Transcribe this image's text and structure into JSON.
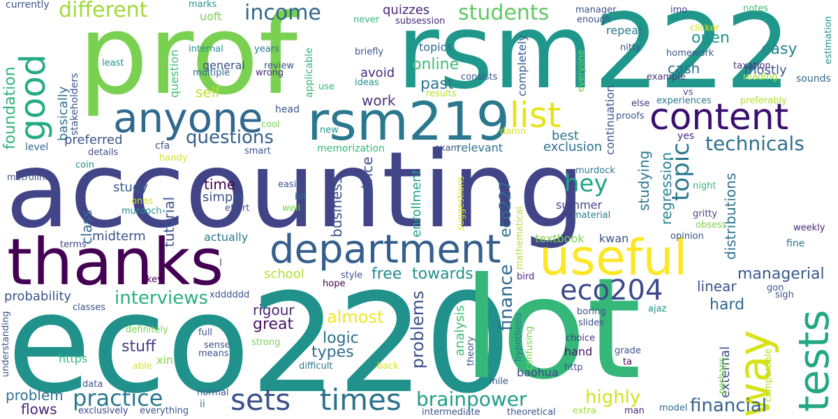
{
  "words": [
    {
      "text": "accounting",
      "color": "#414487"
    },
    {
      "text": "eco220",
      "color": "#21918c"
    },
    {
      "text": "prof",
      "color": "#7ad151"
    },
    {
      "text": "rsm222",
      "color": "#1f988b"
    },
    {
      "text": "lot",
      "color": "#35b779"
    },
    {
      "text": "thanks",
      "color": "#440154"
    },
    {
      "text": "department",
      "color": "#355f8d"
    },
    {
      "text": "anyone",
      "color": "#31688e"
    },
    {
      "text": "rsm219",
      "color": "#2a788e"
    },
    {
      "text": "useful",
      "color": "#fde725"
    },
    {
      "text": "way",
      "color": "#d8e219"
    },
    {
      "text": "content",
      "color": "#3b0f70"
    },
    {
      "text": "tests",
      "color": "#22a884"
    },
    {
      "text": "times",
      "color": "#2c728e"
    },
    {
      "text": "sets",
      "color": "#3b528b"
    },
    {
      "text": "eco204",
      "color": "#3e4989"
    },
    {
      "text": "good",
      "color": "#25ac82"
    },
    {
      "text": "list",
      "color": "#e5e419"
    },
    {
      "text": "practice",
      "color": "#2a788e"
    },
    {
      "text": "brainpower",
      "color": "#1f9e89"
    },
    {
      "text": "topic",
      "color": "#2a788e"
    },
    {
      "text": "income",
      "color": "#31688e"
    },
    {
      "text": "students",
      "color": "#5ec962"
    },
    {
      "text": "different",
      "color": "#a0da39"
    },
    {
      "text": "questions",
      "color": "#355f8d"
    },
    {
      "text": "technicals",
      "color": "#2d708e"
    },
    {
      "text": "hey",
      "color": "#21a585"
    },
    {
      "text": "highly",
      "color": "#d2e21b"
    },
    {
      "text": "financial",
      "color": "#34618d"
    },
    {
      "text": "finance",
      "color": "#30698e"
    },
    {
      "text": "interviews",
      "color": "#29af7f"
    },
    {
      "text": "almost",
      "color": "#f1e51d"
    },
    {
      "text": "problems",
      "color": "#3b528b"
    },
    {
      "text": "great",
      "color": "#471365"
    },
    {
      "text": "logic",
      "color": "#2d708e"
    },
    {
      "text": "types",
      "color": "#2f6c8e"
    },
    {
      "text": "stuff",
      "color": "#433e85"
    },
    {
      "text": "foundation",
      "color": "#2eb37c"
    },
    {
      "text": "easy",
      "color": "#26828e"
    },
    {
      "text": "open",
      "color": "#21918c"
    },
    {
      "text": "mostly",
      "color": "#39568c"
    },
    {
      "text": "online",
      "color": "#3dbc74"
    },
    {
      "text": "past",
      "color": "#2a788e"
    },
    {
      "text": "cash",
      "color": "#2c728e"
    },
    {
      "text": "managerial",
      "color": "#38598c"
    },
    {
      "text": "hard",
      "color": "#31688e"
    },
    {
      "text": "linear",
      "color": "#3b528b"
    },
    {
      "text": "free",
      "color": "#23898e"
    },
    {
      "text": "towards",
      "color": "#20928c"
    },
    {
      "text": "school",
      "color": "#b5de2b"
    },
    {
      "text": "rigour",
      "color": "#482878"
    },
    {
      "text": "problem",
      "color": "#2c728e"
    },
    {
      "text": "flows",
      "color": "#482475"
    },
    {
      "text": "external",
      "color": "#3e4989"
    },
    {
      "text": "distributions",
      "color": "#2d708e"
    },
    {
      "text": "regression",
      "color": "#26828e"
    },
    {
      "text": "studying",
      "color": "#2a788e"
    },
    {
      "text": "exclusion",
      "color": "#2c728e"
    },
    {
      "text": "best",
      "color": "#2a788e"
    },
    {
      "text": "summer",
      "color": "#414487"
    },
    {
      "text": "business",
      "color": "#3b528b"
    },
    {
      "text": "advice",
      "color": "#3b528b"
    },
    {
      "text": "enrollment",
      "color": "#1fa088"
    },
    {
      "text": "eco227",
      "color": "#2d708e"
    },
    {
      "text": "analysis",
      "color": "#3dbc74"
    },
    {
      "text": "work",
      "color": "#46337e"
    },
    {
      "text": "self",
      "color": "#bddf26"
    },
    {
      "text": "quizzes",
      "color": "#482576"
    },
    {
      "text": "topics",
      "color": "#31688e"
    },
    {
      "text": "avoid",
      "color": "#482878"
    },
    {
      "text": "basically",
      "color": "#2c728e"
    },
    {
      "text": "general",
      "color": "#3b528b"
    },
    {
      "text": "question",
      "color": "#44bf70"
    },
    {
      "text": "uoft",
      "color": "#7ad151"
    },
    {
      "text": "class",
      "color": "#31688e"
    },
    {
      "text": "tutorial",
      "color": "#3b528b"
    },
    {
      "text": "time",
      "color": "#440154"
    },
    {
      "text": "simple",
      "color": "#3b528b"
    },
    {
      "text": "study",
      "color": "#38598c"
    },
    {
      "text": "midterm",
      "color": "#3b528b"
    },
    {
      "text": "actually",
      "color": "#2a788e"
    },
    {
      "text": "preferred",
      "color": "#3b528b"
    },
    {
      "text": "level",
      "color": "#31688e"
    },
    {
      "text": "memorization",
      "color": "#35b779"
    },
    {
      "text": "relevant",
      "color": "#2c728e"
    },
    {
      "text": "probability",
      "color": "#39568c"
    },
    {
      "text": "head",
      "color": "#3b528b"
    },
    {
      "text": "repeat",
      "color": "#2a788e"
    },
    {
      "text": "completely",
      "color": "#39568c"
    },
    {
      "text": "continuation",
      "color": "#3b528b"
    },
    {
      "text": "textbook",
      "color": "#7ad151"
    },
    {
      "text": "kwan",
      "color": "#3b528b"
    },
    {
      "text": "hand",
      "color": "#471365"
    },
    {
      "text": "baohua",
      "color": "#414487"
    },
    {
      "text": "https",
      "color": "#35b779"
    },
    {
      "text": "xin",
      "color": "#84d44b"
    },
    {
      "text": "cfa",
      "color": "#39568c"
    },
    {
      "text": "stakeholders",
      "color": "#3b528b"
    },
    {
      "text": "multiple",
      "color": "#31688e"
    },
    {
      "text": "review",
      "color": "#3b528b"
    },
    {
      "text": "wrong",
      "color": "#482878"
    },
    {
      "text": "applicable",
      "color": "#35b779"
    },
    {
      "text": "consists",
      "color": "#3b528b"
    },
    {
      "text": "briefly",
      "color": "#3b528b"
    },
    {
      "text": "ideas",
      "color": "#20928c"
    },
    {
      "text": "results",
      "color": "#b5de2b"
    },
    {
      "text": "use",
      "color": "#35b779"
    },
    {
      "text": "years",
      "color": "#2a788e"
    },
    {
      "text": "internal",
      "color": "#21918c"
    },
    {
      "text": "least",
      "color": "#21918c"
    },
    {
      "text": "currently",
      "color": "#3b528b"
    },
    {
      "text": "marks",
      "color": "#21918c"
    },
    {
      "text": "never",
      "color": "#35b779"
    },
    {
      "text": "subsession",
      "color": "#482878"
    },
    {
      "text": "manager",
      "color": "#3b528b"
    },
    {
      "text": "enough",
      "color": "#3b528b"
    },
    {
      "text": "imo",
      "color": "#414487"
    },
    {
      "text": "notes",
      "color": "#3dbc74"
    },
    {
      "text": "clicker",
      "color": "#d2e21b"
    },
    {
      "text": "homework",
      "color": "#39568c"
    },
    {
      "text": "taxation",
      "color": "#482878"
    },
    {
      "text": "estimation",
      "color": "#21918c"
    },
    {
      "text": "nitty",
      "color": "#3b528b"
    },
    {
      "text": "everyone",
      "color": "#7ad151"
    },
    {
      "text": "example",
      "color": "#46337e"
    },
    {
      "text": "reading",
      "color": "#a0da39"
    },
    {
      "text": "sounds",
      "color": "#31688e"
    },
    {
      "text": "vs",
      "color": "#3b528b"
    },
    {
      "text": "experiences",
      "color": "#2a788e"
    },
    {
      "text": "preferably",
      "color": "#b5de2b"
    },
    {
      "text": "else",
      "color": "#46337e"
    },
    {
      "text": "proofs",
      "color": "#3b528b"
    },
    {
      "text": "yes",
      "color": "#482878"
    },
    {
      "text": "night",
      "color": "#35b779"
    },
    {
      "text": "gritty",
      "color": "#414487"
    },
    {
      "text": "obsess",
      "color": "#7ad151"
    },
    {
      "text": "weekly",
      "color": "#482878"
    },
    {
      "text": "material",
      "color": "#2a788e"
    },
    {
      "text": "opinion",
      "color": "#3b528b"
    },
    {
      "text": "fine",
      "color": "#2a788e"
    },
    {
      "text": "murdock",
      "color": "#2a788e"
    },
    {
      "text": "bird",
      "color": "#482878"
    },
    {
      "text": "ajaz",
      "color": "#21918c"
    },
    {
      "text": "sigh",
      "color": "#3b528b"
    },
    {
      "text": "gon",
      "color": "#3b528b"
    },
    {
      "text": "boring",
      "color": "#3b528b"
    },
    {
      "text": "slides",
      "color": "#3b528b"
    },
    {
      "text": "choice",
      "color": "#46337e"
    },
    {
      "text": "grade",
      "color": "#3b528b"
    },
    {
      "text": "ta",
      "color": "#440154"
    },
    {
      "text": "http",
      "color": "#3b528b"
    },
    {
      "text": "mile",
      "color": "#3b528b"
    },
    {
      "text": "perhaps",
      "color": "#7ad151"
    },
    {
      "text": "comparable",
      "color": "#b5de2b"
    },
    {
      "text": "model",
      "color": "#31688e"
    },
    {
      "text": "man",
      "color": "#482878"
    },
    {
      "text": "extra",
      "color": "#a0da39"
    },
    {
      "text": "theoretical",
      "color": "#3b528b"
    },
    {
      "text": "intermediate",
      "color": "#3b528b"
    },
    {
      "text": "hypothesis",
      "color": "#2a788e"
    },
    {
      "text": "confusing",
      "color": "#7ad151"
    },
    {
      "text": "theory",
      "color": "#3b528b"
    },
    {
      "text": "mathematical",
      "color": "#b5de2b"
    },
    {
      "text": "suggestions",
      "color": "#d8e219"
    },
    {
      "text": "damn",
      "color": "#d2e21b"
    },
    {
      "text": "exam",
      "color": "#3b528b"
    },
    {
      "text": "new",
      "color": "#21918c"
    },
    {
      "text": "cool",
      "color": "#7ad151"
    },
    {
      "text": "smart",
      "color": "#3b528b"
    },
    {
      "text": "easier",
      "color": "#3b528b"
    },
    {
      "text": "bit",
      "color": "#2a788e"
    },
    {
      "text": "well",
      "color": "#7ad151"
    },
    {
      "text": "effort",
      "color": "#3b528b"
    },
    {
      "text": "details",
      "color": "#3b528b"
    },
    {
      "text": "handy",
      "color": "#d8e219"
    },
    {
      "text": "coin",
      "color": "#21918c"
    },
    {
      "text": "metrolinx",
      "color": "#3b528b"
    },
    {
      "text": "ones",
      "color": "#d2e21b"
    },
    {
      "text": "murdoch",
      "color": "#21918c"
    },
    {
      "text": "terms",
      "color": "#414487"
    },
    {
      "text": "l",
      "color": "#3b528b"
    },
    {
      "text": "key",
      "color": "#440154"
    },
    {
      "text": "hope",
      "color": "#440154"
    },
    {
      "text": "style",
      "color": "#3b528b"
    },
    {
      "text": "xdddddd",
      "color": "#3b528b"
    },
    {
      "text": "classes",
      "color": "#3b528b"
    },
    {
      "text": "definitely",
      "color": "#7ad151"
    },
    {
      "text": "full",
      "color": "#3b528b"
    },
    {
      "text": "sense",
      "color": "#3b528b"
    },
    {
      "text": "means",
      "color": "#3b528b"
    },
    {
      "text": "strong",
      "color": "#7ad151"
    },
    {
      "text": "able",
      "color": "#d8e219"
    },
    {
      "text": "difficult",
      "color": "#2a788e"
    },
    {
      "text": "back",
      "color": "#d2e21b"
    },
    {
      "text": "understanding",
      "color": "#3b528b"
    },
    {
      "text": "data",
      "color": "#3b528b"
    },
    {
      "text": "normal",
      "color": "#3b528b"
    },
    {
      "text": "ii",
      "color": "#2a788e"
    },
    {
      "text": "exclusively",
      "color": "#414487"
    },
    {
      "text": "everything",
      "color": "#3b528b"
    }
  ]
}
